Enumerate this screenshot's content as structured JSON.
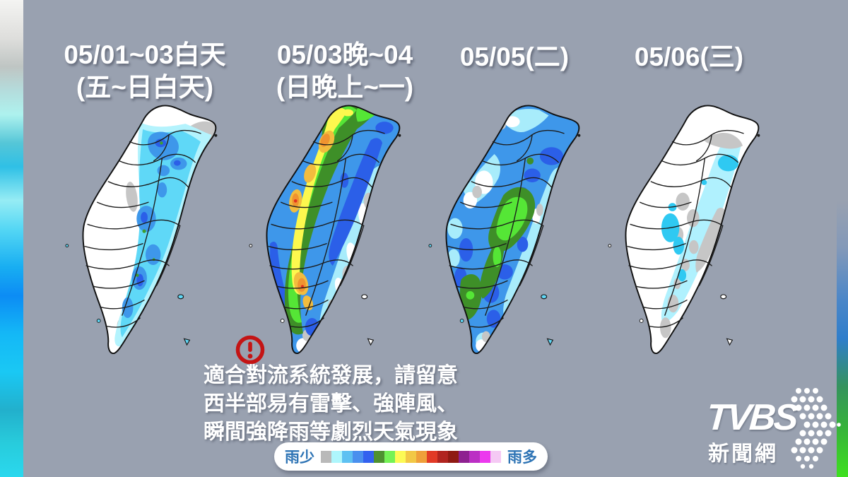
{
  "columns": [
    {
      "title": "05/01~03白天",
      "subtitle": "(五~日白天)"
    },
    {
      "title": "05/03晚~04",
      "subtitle": "(日晚上~一)"
    },
    {
      "title": "05/05(二)",
      "subtitle": ""
    },
    {
      "title": "05/06(三)",
      "subtitle": ""
    }
  ],
  "warning": {
    "icon": "exclamation-circle-icon",
    "lines": [
      "適合對流系統發展，請留意",
      "西半部易有雷擊、強陣風、",
      "瞬間強降雨等劇烈天氣現象"
    ]
  },
  "legend": {
    "label_left": "雨少",
    "label_right": "雨多",
    "colors": [
      "#b9b9b9",
      "#aef6fc",
      "#5ec1f2",
      "#4a90ee",
      "#3361ef",
      "#4f9130",
      "#74f255",
      "#fcfa55",
      "#f2c845",
      "#ef9f3a",
      "#e23a26",
      "#b1241f",
      "#8f1a13",
      "#8e2190",
      "#bb2fc4",
      "#ec39ee",
      "#f5c9f4"
    ]
  },
  "branding": {
    "logo_text": "TVBS",
    "logo_subtext": "新聞網"
  },
  "colors": {
    "background": "#99a1b0",
    "title_text": "#ffffff",
    "legend_label_text": "#2e74b5",
    "warning_icon_red": "#c41414",
    "map_no_rain": "#ffffff",
    "map_trace_gray": "#c6c6c6",
    "map_pale_cyan": "#aef2fd",
    "map_bright_cyan": "#5fd8f7",
    "map_blue": "#3e97ea",
    "map_royal_blue": "#2b5fe8",
    "map_dark_green": "#3e8f28",
    "map_bright_green": "#55e636",
    "map_yellow": "#fdf84e",
    "map_amber": "#f2bc3e",
    "map_orange": "#ef9330",
    "map_red": "#e23220"
  }
}
